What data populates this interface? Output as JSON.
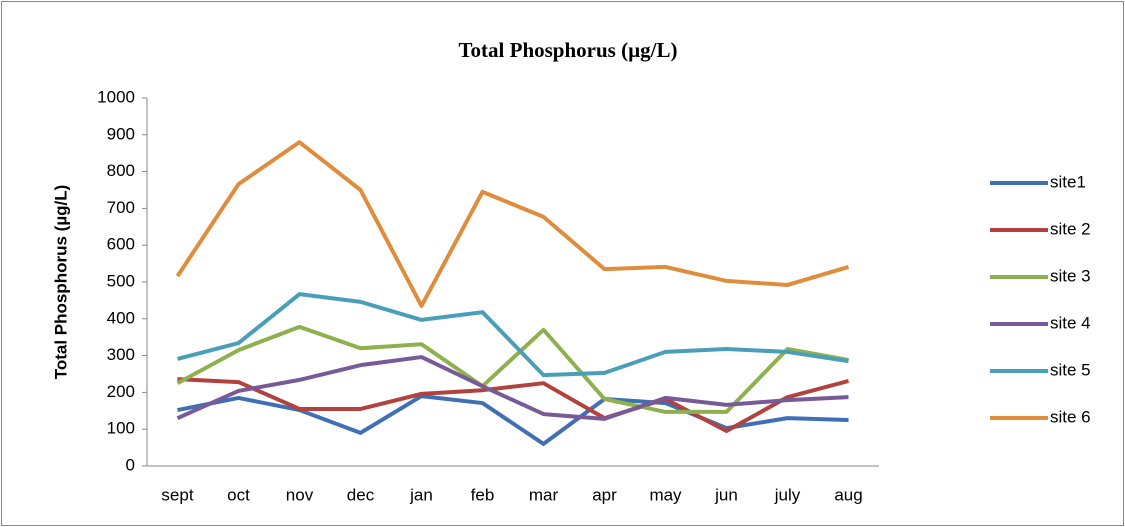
{
  "chart_data": {
    "type": "line",
    "title": "Total Phosphorus (µg/L)",
    "y_label": "Total Phosphorus (µg/L)",
    "categories": [
      "sept",
      "oct",
      "nov",
      "dec",
      "jan",
      "feb",
      "mar",
      "apr",
      "may",
      "jun",
      "july",
      "aug"
    ],
    "ylim": [
      0,
      1000
    ],
    "yticks": [
      0,
      100,
      200,
      300,
      400,
      500,
      600,
      700,
      800,
      900,
      1000
    ],
    "legend": "right",
    "series": [
      {
        "name": "site1",
        "color": "#3f6fb5",
        "values": [
          152,
          185,
          152,
          90,
          190,
          171,
          60,
          182,
          171,
          103,
          130,
          125
        ]
      },
      {
        "name": "site 2",
        "color": "#b2423e",
        "values": [
          236,
          228,
          155,
          155,
          196,
          206,
          225,
          130,
          182,
          95,
          187,
          231
        ]
      },
      {
        "name": "site 3",
        "color": "#8eb04f",
        "values": [
          225,
          315,
          378,
          320,
          331,
          217,
          370,
          182,
          147,
          147,
          318,
          288
        ]
      },
      {
        "name": "site 4",
        "color": "#775a97",
        "values": [
          130,
          204,
          234,
          274,
          296,
          217,
          141,
          128,
          185,
          166,
          179,
          187
        ]
      },
      {
        "name": "site 5",
        "color": "#4a9fb8",
        "values": [
          291,
          334,
          467,
          446,
          397,
          418,
          247,
          253,
          310,
          318,
          310,
          285
        ]
      },
      {
        "name": "site 6",
        "color": "#e08c3d",
        "values": [
          516,
          766,
          880,
          750,
          435,
          745,
          677,
          535,
          541,
          503,
          492,
          541
        ]
      }
    ]
  }
}
